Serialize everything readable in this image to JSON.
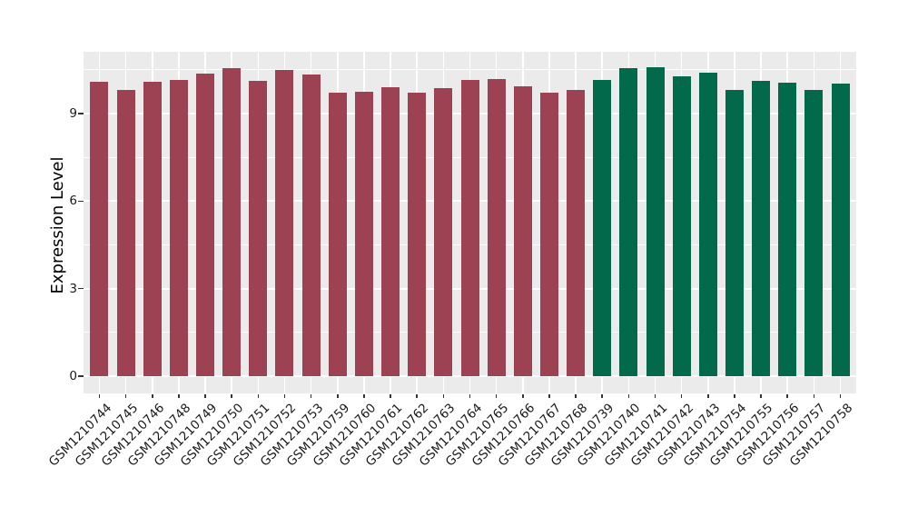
{
  "chart_data": {
    "type": "bar",
    "title": "",
    "xlabel": "",
    "ylabel": "Expression Level",
    "yticks": [
      0,
      3,
      6,
      9
    ],
    "yticks_minor": [
      1.5,
      4.5,
      7.5,
      10.5
    ],
    "ylim": [
      -0.6,
      11.1
    ],
    "grid": "major and minor white gridlines on gray panel, ggplot style",
    "legend_position": "none",
    "panel_background": "#EBEBEB",
    "gridline_color": "#FFFFFF",
    "tick_color": "#333333",
    "label_color": "#1a1a1a",
    "group_colors": {
      "group1": "#9C4253",
      "group2": "#02694A"
    },
    "bars": [
      {
        "label": "GSM1210744",
        "value": 10.09,
        "group": "group1"
      },
      {
        "label": "GSM1210745",
        "value": 9.81,
        "group": "group1"
      },
      {
        "label": "GSM1210746",
        "value": 10.09,
        "group": "group1"
      },
      {
        "label": "GSM1210748",
        "value": 10.16,
        "group": "group1"
      },
      {
        "label": "GSM1210749",
        "value": 10.37,
        "group": "group1"
      },
      {
        "label": "GSM1210750",
        "value": 10.56,
        "group": "group1"
      },
      {
        "label": "GSM1210751",
        "value": 10.12,
        "group": "group1"
      },
      {
        "label": "GSM1210752",
        "value": 10.5,
        "group": "group1"
      },
      {
        "label": "GSM1210753",
        "value": 10.34,
        "group": "group1"
      },
      {
        "label": "GSM1210759",
        "value": 9.72,
        "group": "group1"
      },
      {
        "label": "GSM1210760",
        "value": 9.75,
        "group": "group1"
      },
      {
        "label": "GSM1210761",
        "value": 9.91,
        "group": "group1"
      },
      {
        "label": "GSM1210762",
        "value": 9.72,
        "group": "group1"
      },
      {
        "label": "GSM1210763",
        "value": 9.88,
        "group": "group1"
      },
      {
        "label": "GSM1210764",
        "value": 10.16,
        "group": "group1"
      },
      {
        "label": "GSM1210765",
        "value": 10.19,
        "group": "group1"
      },
      {
        "label": "GSM1210766",
        "value": 9.94,
        "group": "group1"
      },
      {
        "label": "GSM1210767",
        "value": 9.72,
        "group": "group1"
      },
      {
        "label": "GSM1210768",
        "value": 9.81,
        "group": "group1"
      },
      {
        "label": "GSM1210739",
        "value": 10.15,
        "group": "group2"
      },
      {
        "label": "GSM1210740",
        "value": 10.56,
        "group": "group2"
      },
      {
        "label": "GSM1210741",
        "value": 10.59,
        "group": "group2"
      },
      {
        "label": "GSM1210742",
        "value": 10.28,
        "group": "group2"
      },
      {
        "label": "GSM1210743",
        "value": 10.4,
        "group": "group2"
      },
      {
        "label": "GSM1210754",
        "value": 9.81,
        "group": "group2"
      },
      {
        "label": "GSM1210755",
        "value": 10.12,
        "group": "group2"
      },
      {
        "label": "GSM1210756",
        "value": 10.06,
        "group": "group2"
      },
      {
        "label": "GSM1210757",
        "value": 9.81,
        "group": "group2"
      },
      {
        "label": "GSM1210758",
        "value": 10.03,
        "group": "group2"
      }
    ]
  }
}
